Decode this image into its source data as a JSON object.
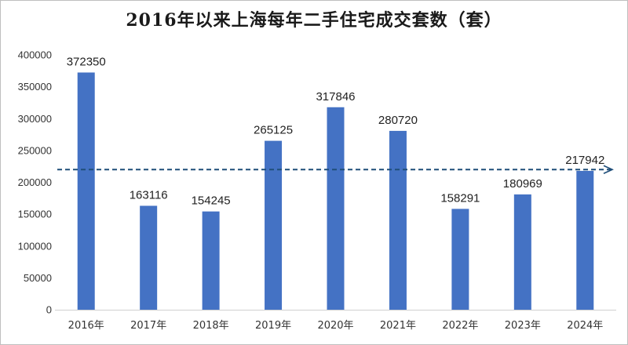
{
  "chart_data": {
    "type": "bar",
    "title": "2016年以来上海每年二手住宅成交套数（套）",
    "categories": [
      "2016年",
      "2017年",
      "2018年",
      "2019年",
      "2020年",
      "2021年",
      "2022年",
      "2023年",
      "2024年"
    ],
    "values": [
      372350,
      163116,
      154245,
      265125,
      317846,
      280720,
      158291,
      180969,
      217942
    ],
    "xlabel": "",
    "ylabel": "",
    "ylim": [
      0,
      400000
    ],
    "yticks": [
      0,
      50000,
      100000,
      150000,
      200000,
      250000,
      300000,
      350000,
      400000
    ],
    "grid": false,
    "legend": "none",
    "reference_line": {
      "style": "dashed-arrow",
      "value": 220000
    },
    "colors": {
      "bar": "#4472C4",
      "reference_line": "#1F4E79"
    }
  }
}
